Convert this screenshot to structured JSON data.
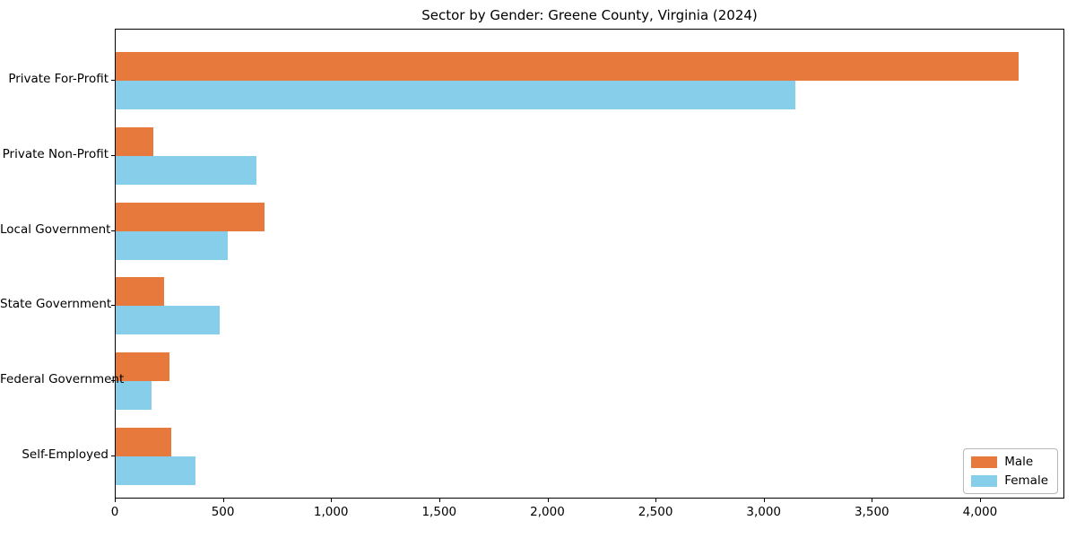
{
  "chart_data": {
    "type": "bar",
    "orientation": "horizontal",
    "title": "Sector by Gender: Greene County, Virginia (2024)",
    "categories": [
      "Private For-Profit",
      "Private Non-Profit",
      "Local Government",
      "State Government",
      "Federal Government",
      "Self-Employed"
    ],
    "series": [
      {
        "name": "Male",
        "color": "#E8793C",
        "values": [
          4175,
          175,
          690,
          225,
          250,
          255
        ]
      },
      {
        "name": "Female",
        "color": "#87CEEB",
        "values": [
          3140,
          650,
          520,
          480,
          165,
          370
        ]
      }
    ],
    "xlabel": "",
    "ylabel": "",
    "xlim": [
      0,
      4390
    ],
    "x_ticks": [
      0,
      500,
      1000,
      1500,
      2000,
      2500,
      3000,
      3500,
      4000
    ],
    "x_tick_labels": [
      "0",
      "500",
      "1,000",
      "1,500",
      "2,000",
      "2,500",
      "3,000",
      "3,500",
      "4,000"
    ],
    "grid": false,
    "legend": {
      "position": "lower right",
      "entries": [
        "Male",
        "Female"
      ]
    }
  }
}
